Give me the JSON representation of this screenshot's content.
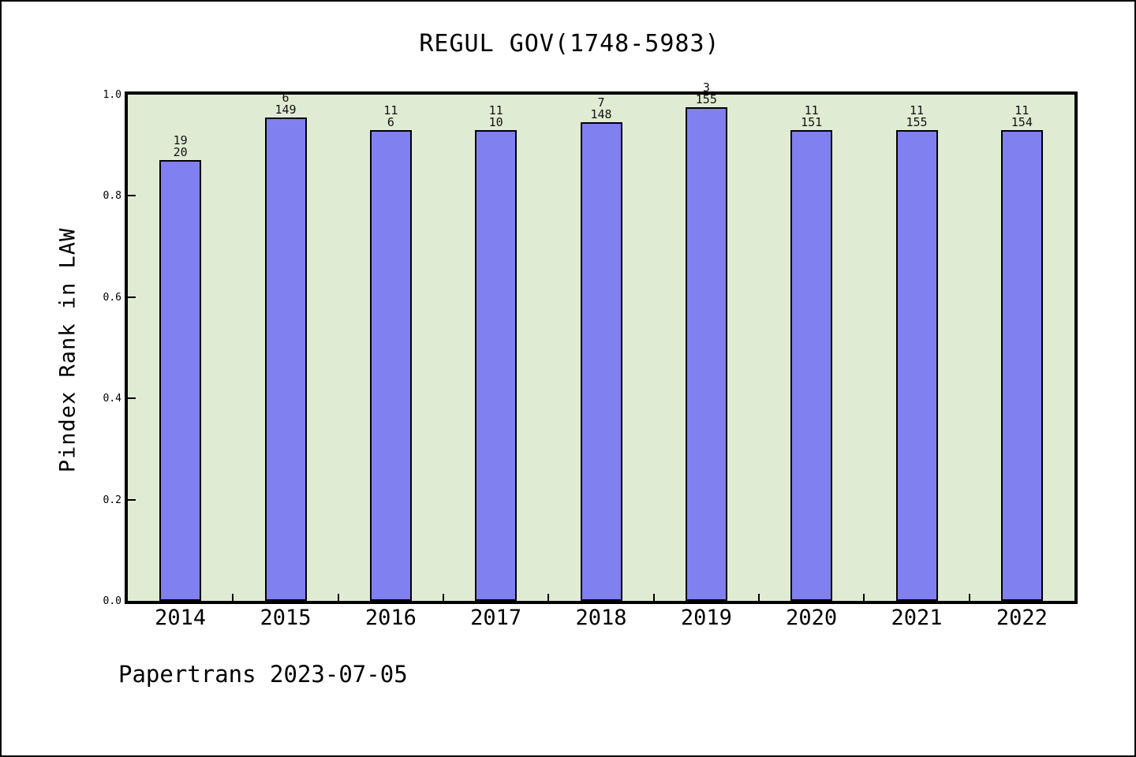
{
  "chart_data": {
    "type": "bar",
    "title": "REGUL GOV(1748-5983)",
    "ylabel": "Pindex Rank in LAW",
    "xlabel": "",
    "categories": [
      "2014",
      "2015",
      "2016",
      "2017",
      "2018",
      "2019",
      "2020",
      "2021",
      "2022"
    ],
    "values": [
      0.87,
      0.955,
      0.93,
      0.93,
      0.945,
      0.975,
      0.93,
      0.93,
      0.93
    ],
    "bar_labels": [
      [
        "19",
        "20"
      ],
      [
        "6",
        "149"
      ],
      [
        "11",
        "6"
      ],
      [
        "11",
        "10"
      ],
      [
        "7",
        "148"
      ],
      [
        "3",
        "155"
      ],
      [
        "11",
        "151"
      ],
      [
        "11",
        "155"
      ],
      [
        "11",
        "154"
      ]
    ],
    "ylim": [
      0.0,
      1.0
    ],
    "yticks": [
      0.0,
      0.2,
      0.4,
      0.6,
      0.8,
      1.0
    ],
    "ytick_labels": [
      "0.0",
      "0.2",
      "0.4",
      "0.6",
      "0.8",
      "1.0"
    ],
    "grid": false,
    "legend": null,
    "bar_color": "#8080f0",
    "bar_border_color": "#000000",
    "plot_bg_color": "#e0ebd3"
  },
  "footer": {
    "text": "Papertrans 2023-07-05"
  }
}
